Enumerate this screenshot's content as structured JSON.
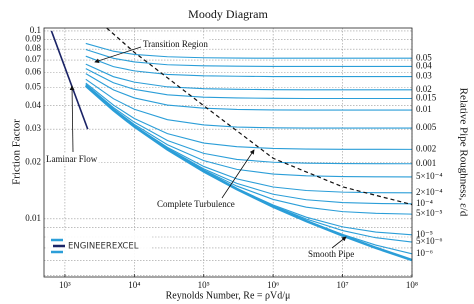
{
  "chart_data": {
    "type": "line",
    "title": "Moody Diagram",
    "x_label": "Reynolds Number, Re = ρVd/μ",
    "y_label": "Friction Factor",
    "y2_label": "Relative Pipe Roughness, ε/d",
    "xscale": "log",
    "yscale": "log",
    "grid": true,
    "xlim": [
      500,
      100000000
    ],
    "ylim": [
      0.0049,
      0.1037
    ],
    "xticks": [
      {
        "value": 1000,
        "label": "10³"
      },
      {
        "value": 10000,
        "label": "10⁴"
      },
      {
        "value": 100000,
        "label": "10⁵"
      },
      {
        "value": 1000000,
        "label": "10⁶"
      },
      {
        "value": 10000000,
        "label": "10⁷"
      },
      {
        "value": 100000000,
        "label": "10⁸"
      }
    ],
    "yticks": [
      0.1,
      0.09,
      0.08,
      0.07,
      0.06,
      0.05,
      0.04,
      0.03,
      0.02,
      0.01
    ],
    "yminor": [
      0.009,
      0.008,
      0.007,
      0.006,
      0.005
    ],
    "curve_color": "#2b9ed8",
    "x": [
      2000,
      5000,
      10000,
      30000,
      100000,
      300000,
      1000000,
      3000000,
      10000000,
      30000000,
      100000000
    ],
    "series": [
      {
        "name": "0.05",
        "values": [
          0.0858,
          0.078,
          0.075,
          0.0729,
          0.072,
          0.0717,
          0.0716,
          0.0716,
          0.0716,
          0.0716,
          0.0716
        ]
      },
      {
        "name": "0.04",
        "values": [
          0.0797,
          0.0715,
          0.0684,
          0.0661,
          0.0652,
          0.0649,
          0.0647,
          0.0647,
          0.0647,
          0.0647,
          0.0647
        ]
      },
      {
        "name": "0.03",
        "values": [
          0.0734,
          0.0646,
          0.0613,
          0.0587,
          0.0577,
          0.0574,
          0.0572,
          0.0572,
          0.0572,
          0.0572,
          0.0572
        ]
      },
      {
        "name": "0.02",
        "values": [
          0.0666,
          0.0571,
          0.0534,
          0.0504,
          0.0493,
          0.0489,
          0.0487,
          0.0486,
          0.0486,
          0.0486,
          0.0486
        ]
      },
      {
        "name": "0.015",
        "values": [
          0.063,
          0.053,
          0.0489,
          0.0457,
          0.0444,
          0.044,
          0.0438,
          0.0437,
          0.0437,
          0.0437,
          0.0437
        ]
      },
      {
        "name": "0.01",
        "values": [
          0.0593,
          0.0486,
          0.044,
          0.0403,
          0.0388,
          0.0382,
          0.038,
          0.0379,
          0.0379,
          0.0379,
          0.0379
        ]
      },
      {
        "name": "0.005",
        "values": [
          0.0553,
          0.0436,
          0.0383,
          0.0337,
          0.0316,
          0.0308,
          0.0305,
          0.0304,
          0.0304,
          0.0304,
          0.0304
        ]
      },
      {
        "name": "0.002",
        "values": [
          0.0528,
          0.0403,
          0.0342,
          0.0284,
          0.0253,
          0.0242,
          0.0237,
          0.0235,
          0.02345,
          0.02343,
          0.02342
        ]
      },
      {
        "name": "0.001",
        "values": [
          0.052,
          0.0391,
          0.0327,
          0.0261,
          0.0223,
          0.0207,
          0.02,
          0.01978,
          0.01969,
          0.01965,
          0.01964
        ]
      },
      {
        "name": "5×10⁻⁴",
        "values": [
          0.0515,
          0.0385,
          0.0318,
          0.0248,
          0.0204,
          0.01833,
          0.0173,
          0.01693,
          0.01678,
          0.01673,
          0.01671
        ]
      },
      {
        "name": "2×10⁻⁴",
        "values": [
          0.0513,
          0.0381,
          0.0313,
          0.024,
          0.019,
          0.01632,
          0.01477,
          0.01415,
          0.01387,
          0.01378,
          0.01375
        ]
      },
      {
        "name": "10⁻⁴",
        "values": [
          0.0512,
          0.038,
          0.0311,
          0.0237,
          0.01845,
          0.01544,
          0.01351,
          0.01263,
          0.01221,
          0.01207,
          0.01201
        ]
      },
      {
        "name": "5×10⁻⁵",
        "values": [
          0.0512,
          0.0379,
          0.0311,
          0.0235,
          0.0182,
          0.01494,
          0.01268,
          0.01153,
          0.01092,
          0.01069,
          0.01059
        ]
      },
      {
        "name": "10⁻⁵",
        "values": [
          0.0511,
          0.0379,
          0.031,
          0.0234,
          0.0179,
          0.01449,
          0.01185,
          0.0102,
          0.00906,
          0.0085,
          0.00822
        ]
      },
      {
        "name": "5×10⁻⁶",
        "values": [
          0.0511,
          0.0379,
          0.031,
          0.0234,
          0.0179,
          0.01444,
          0.01173,
          0.00998,
          0.00866,
          0.00793,
          0.00752
        ]
      },
      {
        "name": "10⁻⁶",
        "values": [
          0.0511,
          0.0379,
          0.031,
          0.0234,
          0.0179,
          0.0144,
          0.01163,
          0.00978,
          0.00826,
          0.00725,
          0.00651
        ]
      }
    ],
    "smooth_pipe": {
      "values": [
        0.0511,
        0.0379,
        0.031,
        0.0234,
        0.0179,
        0.0144,
        0.0116,
        0.00973,
        0.00814,
        0.00701,
        0.00603
      ]
    },
    "laminar": {
      "x": [
        640,
        2133
      ],
      "values": [
        0.1,
        0.03
      ],
      "color": "#1a2366"
    },
    "transition": {
      "x": [
        4000,
        10000,
        100000,
        1000000,
        10000000,
        100000000
      ],
      "values": [
        0.1037,
        0.077,
        0.04,
        0.021,
        0.0148,
        0.0119
      ]
    },
    "annotations": [
      "Transition Region",
      "Laminar Flow",
      "Complete Turbulence",
      "Smooth Pipe"
    ],
    "watermark": "ENGINEEREXCEL"
  }
}
